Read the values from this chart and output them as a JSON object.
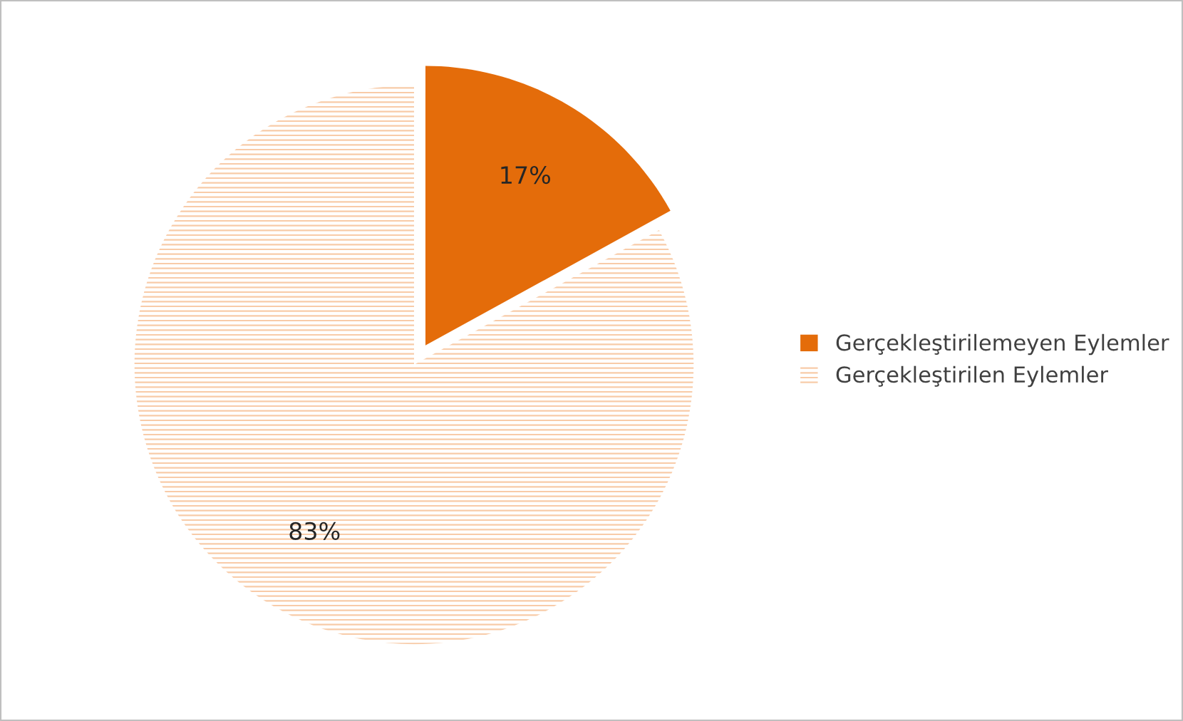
{
  "chart_data": {
    "type": "pie",
    "categories": [
      "Gerçekleştirilemeyen Eylemler",
      "Gerçekleştirilen Eylemler"
    ],
    "values": [
      17,
      83
    ],
    "colors": [
      "#e46c0a",
      "#f8cba8"
    ],
    "value_labels": [
      "17%",
      "83%"
    ],
    "legend": "right"
  }
}
